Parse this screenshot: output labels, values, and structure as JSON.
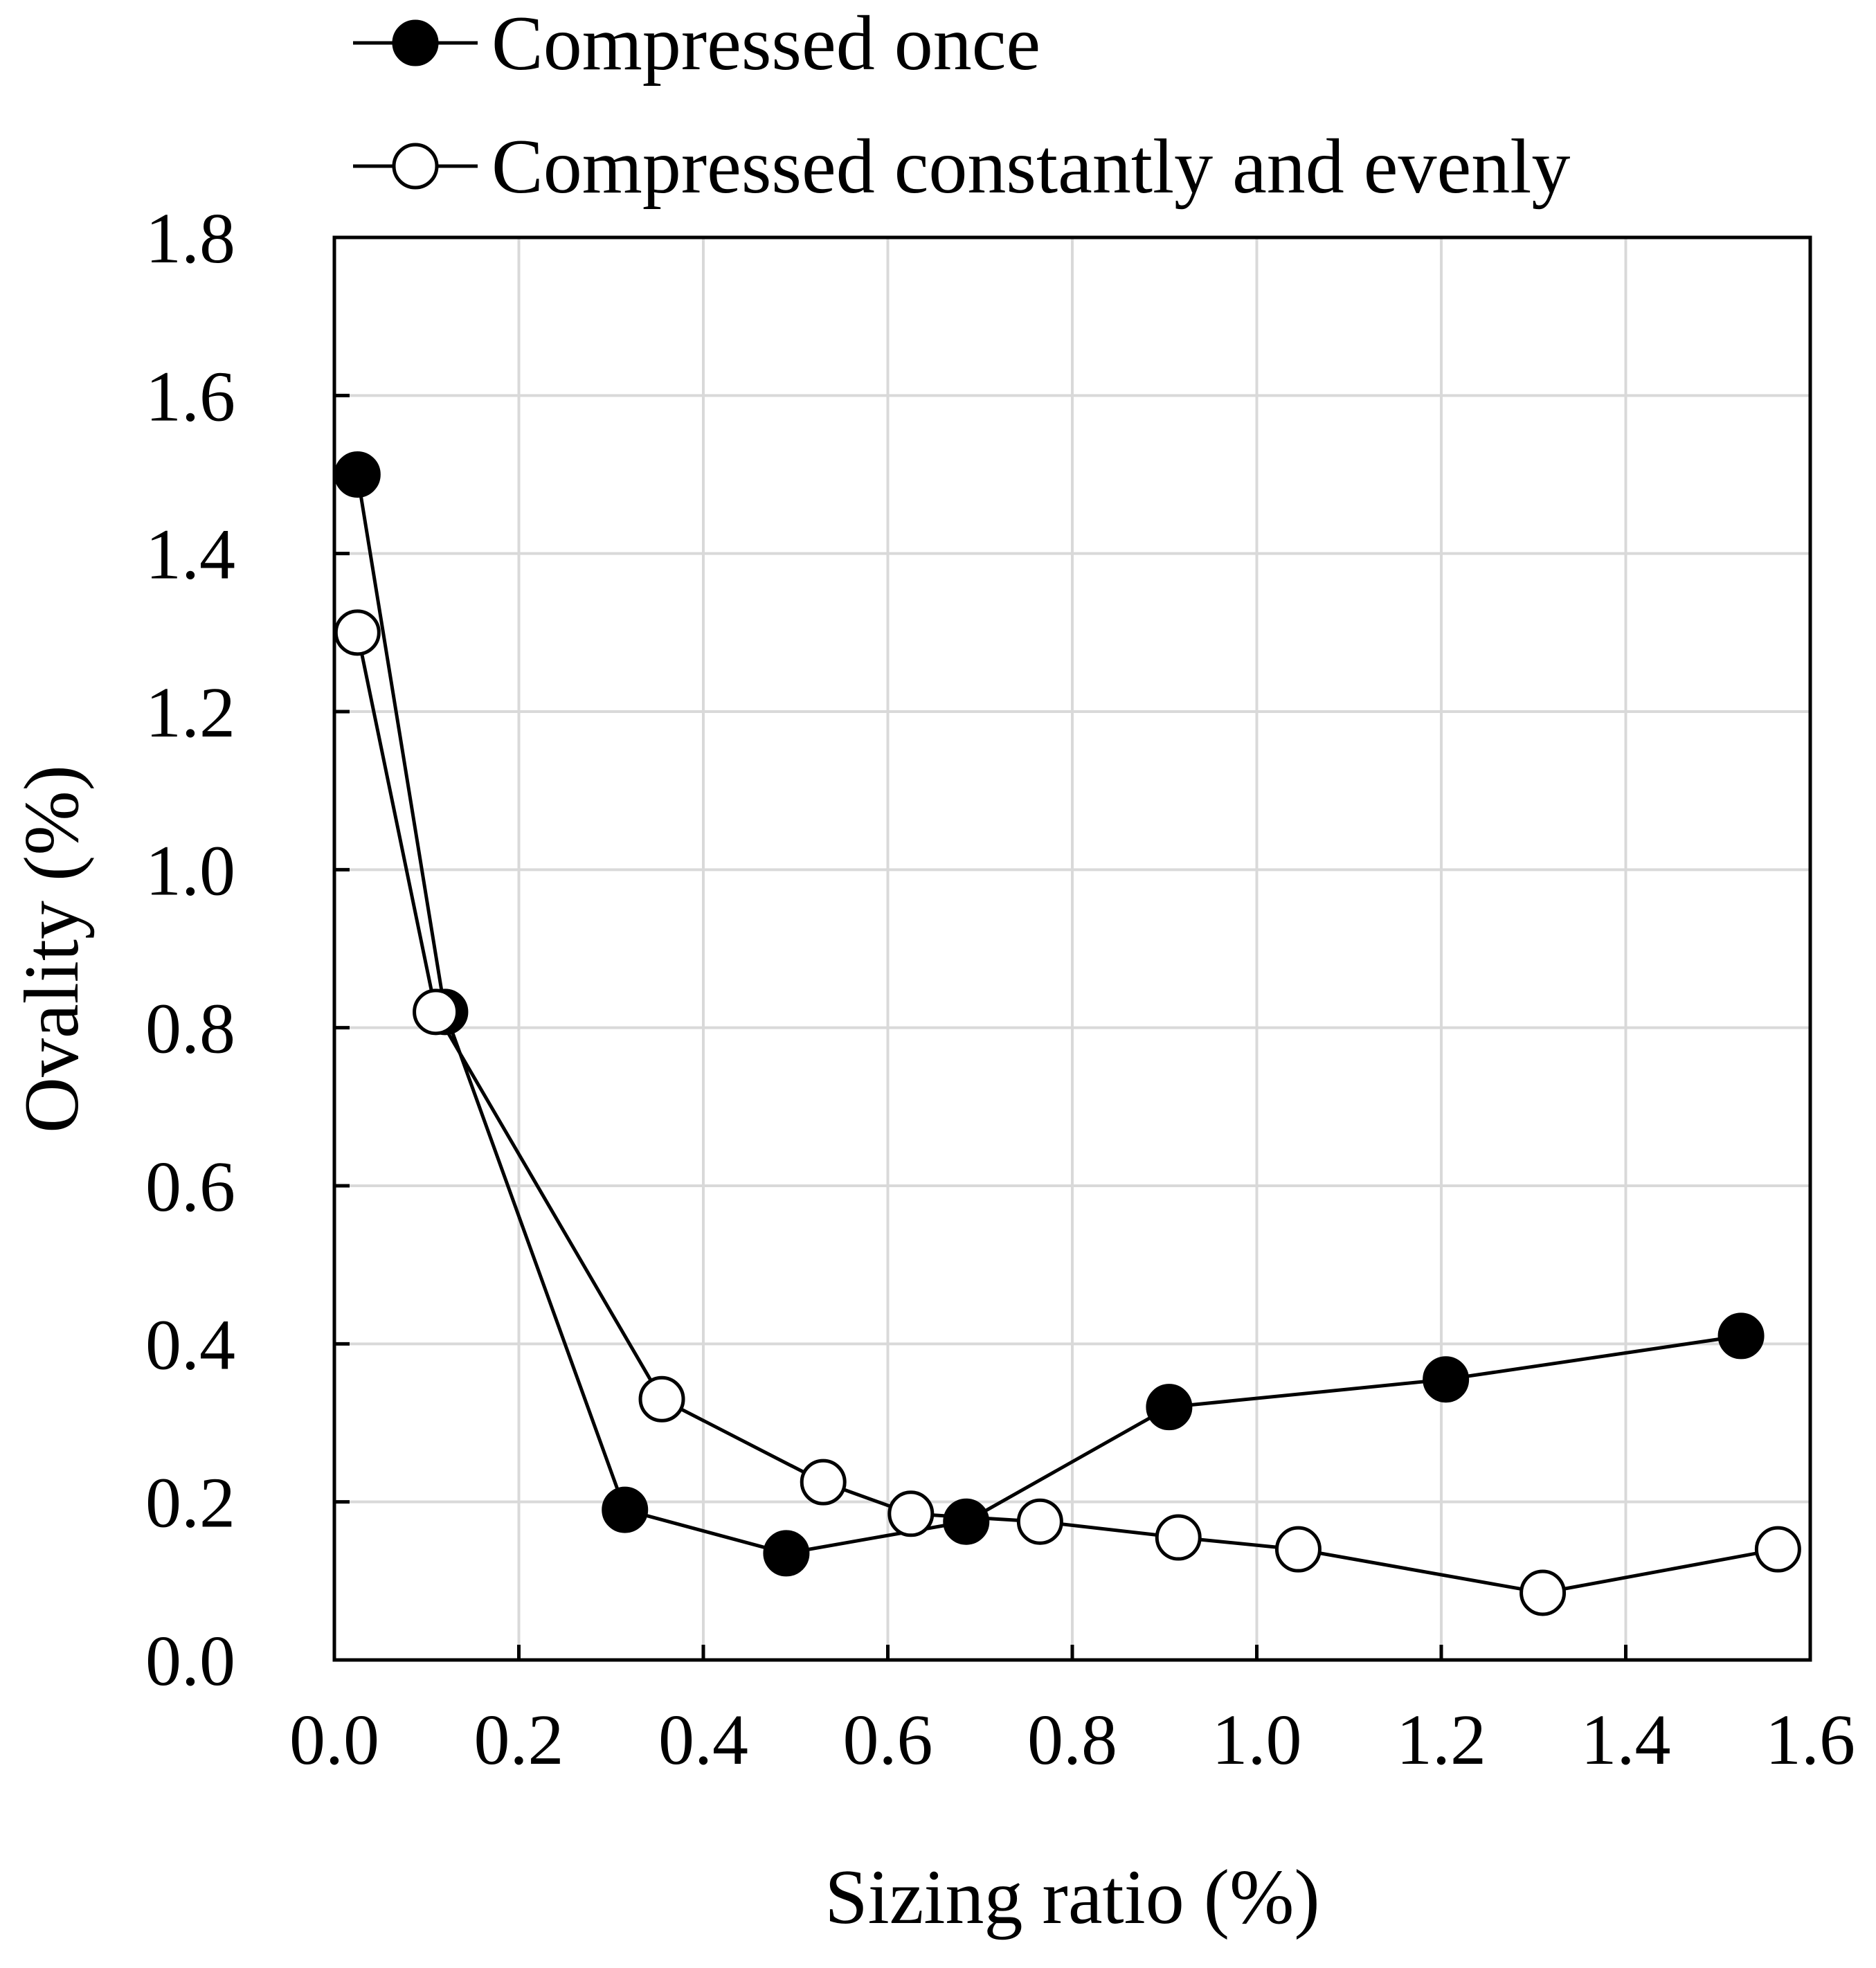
{
  "chart_data": {
    "type": "line",
    "title": "",
    "xlabel": "Sizing ratio (%)",
    "ylabel": "Ovality (%)",
    "xlim": [
      0.0,
      1.6
    ],
    "ylim": [
      0.0,
      1.8
    ],
    "xticks": [
      "0.0",
      "0.2",
      "0.4",
      "0.6",
      "0.8",
      "1.0",
      "1.2",
      "1.4",
      "1.6"
    ],
    "yticks": [
      "0.0",
      "0.2",
      "0.4",
      "0.6",
      "0.8",
      "1.0",
      "1.2",
      "1.4",
      "1.6",
      "1.8"
    ],
    "grid": true,
    "legend_position": "top-left-outside",
    "series": [
      {
        "name": "Compressed once",
        "marker": "filled-circle",
        "color": "#000000",
        "x": [
          0.025,
          0.12,
          0.315,
          0.49,
          0.685,
          0.905,
          1.205,
          1.525
        ],
        "y": [
          1.5,
          0.82,
          0.19,
          0.135,
          0.175,
          0.32,
          0.355,
          0.41
        ]
      },
      {
        "name": "Compressed constantly and evenly",
        "marker": "open-circle",
        "color": "#000000",
        "x": [
          0.025,
          0.11,
          0.355,
          0.53,
          0.625,
          0.765,
          0.915,
          1.045,
          1.31,
          1.565
        ],
        "y": [
          1.3,
          0.82,
          0.33,
          0.225,
          0.185,
          0.175,
          0.155,
          0.14,
          0.085,
          0.14
        ]
      }
    ]
  }
}
